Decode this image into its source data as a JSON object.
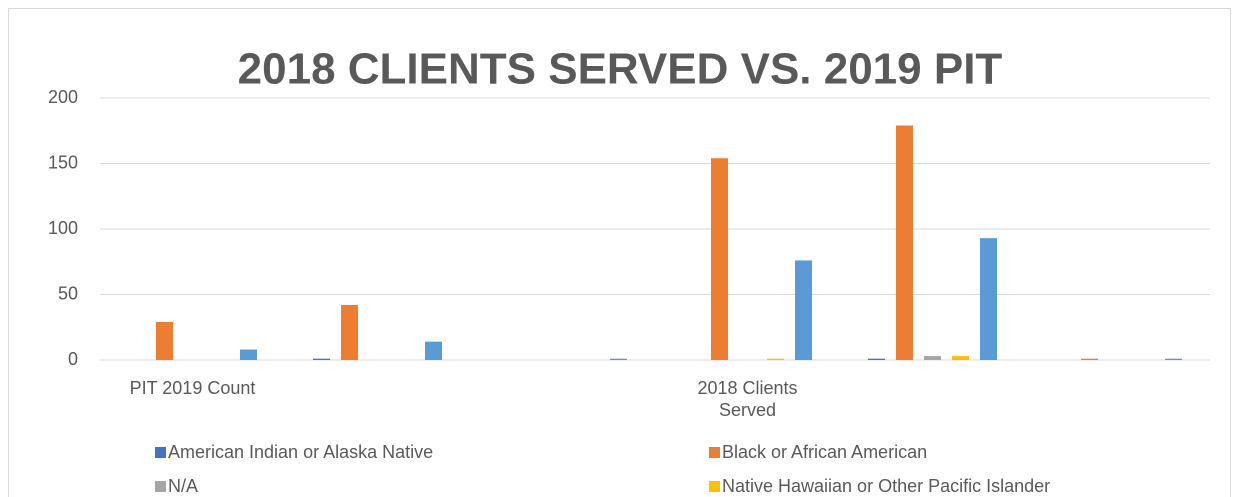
{
  "chart_data": {
    "type": "bar",
    "title": "2018 CLIENTS SERVED VS. 2019 PIT",
    "categories": [
      "PIT 2019 Count",
      null,
      null,
      "2018 Clients Served",
      null,
      null
    ],
    "series": [
      {
        "name": "American Indian or Alaska Native",
        "color": "#4472c4",
        "values": [
          0,
          1,
          0,
          0,
          1,
          0
        ]
      },
      {
        "name": "Black or African American",
        "color": "#ed7d31",
        "values": [
          29,
          42,
          0,
          154,
          179,
          1
        ]
      },
      {
        "name": "N/A",
        "color": "#a5a5a5",
        "values": [
          0,
          0,
          0,
          0,
          3,
          0
        ]
      },
      {
        "name": "Native Hawaiian or Other Pacific Islander",
        "color": "#ffc000",
        "values": [
          0,
          0,
          0,
          1,
          3,
          0
        ]
      },
      {
        "name": null,
        "color": "#5b9bd5",
        "values": [
          8,
          14,
          1,
          76,
          93,
          1
        ]
      }
    ],
    "ylim": [
      0,
      200
    ],
    "yticks": [
      0,
      50,
      100,
      150,
      200
    ],
    "grid": true
  }
}
